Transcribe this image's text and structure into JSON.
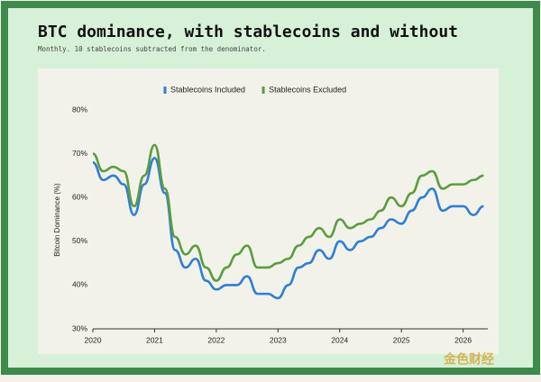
{
  "chart_data": {
    "type": "line",
    "title": "BTC dominance, with stablecoins and without",
    "subtitle": "Monthly. 10 stablecoins subtracted from the denominator.",
    "y_label": "Bitcoin Dominance (%)",
    "x": [
      2020,
      2020.167,
      2020.333,
      2020.5,
      2020.667,
      2020.833,
      2021,
      2021.167,
      2021.333,
      2021.5,
      2021.667,
      2021.833,
      2022,
      2022.167,
      2022.333,
      2022.5,
      2022.667,
      2022.833,
      2023,
      2023.167,
      2023.333,
      2023.5,
      2023.667,
      2023.833,
      2024,
      2024.167,
      2024.333,
      2024.5,
      2024.667,
      2024.833,
      2025,
      2025.167,
      2025.333,
      2025.5,
      2025.667,
      2025.833,
      2026,
      2026.167,
      2026.333
    ],
    "series": [
      {
        "name": "Stablecoins Included",
        "color": "#2f7fd6",
        "values": [
          68,
          64,
          65,
          63,
          56,
          63,
          69,
          61,
          48,
          44,
          46,
          41,
          39,
          40,
          40,
          42,
          38,
          38,
          37,
          40,
          44,
          45,
          48,
          46,
          50,
          48,
          50,
          51,
          53,
          55,
          54,
          57,
          60,
          62,
          57,
          58,
          58,
          56,
          58
        ]
      },
      {
        "name": "Stablecoins Excluded",
        "color": "#5a9e3e",
        "values": [
          70,
          66,
          67,
          66,
          58,
          65,
          72,
          62,
          51,
          47,
          49,
          44,
          41,
          44,
          47,
          49,
          44,
          44,
          45,
          46,
          49,
          51,
          53,
          51,
          55,
          53,
          54,
          55,
          57,
          60,
          58,
          61,
          65,
          66,
          62,
          63,
          63,
          64,
          65
        ]
      }
    ],
    "xlim": [
      2020,
      2026.4
    ],
    "xticks": [
      2020,
      2021,
      2022,
      2023,
      2024,
      2025,
      2026
    ],
    "ylim": [
      30,
      80
    ],
    "yticks": [
      {
        "value": 30,
        "label": "30%"
      },
      {
        "value": 40,
        "label": "40%"
      },
      {
        "value": 50,
        "label": "50%"
      },
      {
        "value": 60,
        "label": "60%"
      },
      {
        "value": 70,
        "label": "70%"
      },
      {
        "value": 80,
        "label": "80%"
      }
    ],
    "legend": "top",
    "grid": false
  },
  "watermark": "金色财经"
}
